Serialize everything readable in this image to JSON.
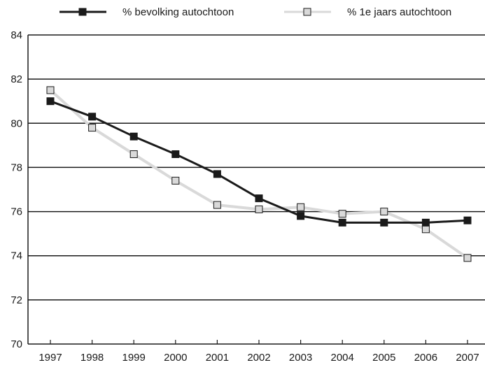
{
  "chart_data": {
    "type": "line",
    "title": "",
    "xlabel": "",
    "ylabel": "",
    "categories": [
      "1997",
      "1998",
      "1999",
      "2000",
      "2001",
      "2002",
      "2003",
      "2004",
      "2005",
      "2006",
      "2007"
    ],
    "ylim": [
      70,
      84
    ],
    "yticks": [
      "70",
      "72",
      "74",
      "76",
      "78",
      "80",
      "82",
      "84"
    ],
    "grid": "horizontal",
    "legend_position": "top",
    "series": [
      {
        "name": "% bevolking autochtoon",
        "values": [
          81.0,
          80.3,
          79.4,
          78.6,
          77.7,
          76.6,
          75.8,
          75.5,
          75.5,
          75.5,
          75.6
        ],
        "line_color": "#1a1a1a",
        "marker_fill": "#1a1a1a",
        "marker_stroke": "#1a1a1a"
      },
      {
        "name": "% 1e jaars autochtoon",
        "values": [
          81.5,
          79.8,
          78.6,
          77.4,
          76.3,
          76.1,
          76.2,
          75.9,
          76.0,
          75.2,
          73.9
        ],
        "line_color": "#d9d9d9",
        "marker_fill": "#d9d9d9",
        "marker_stroke": "#1a1a1a"
      }
    ]
  }
}
